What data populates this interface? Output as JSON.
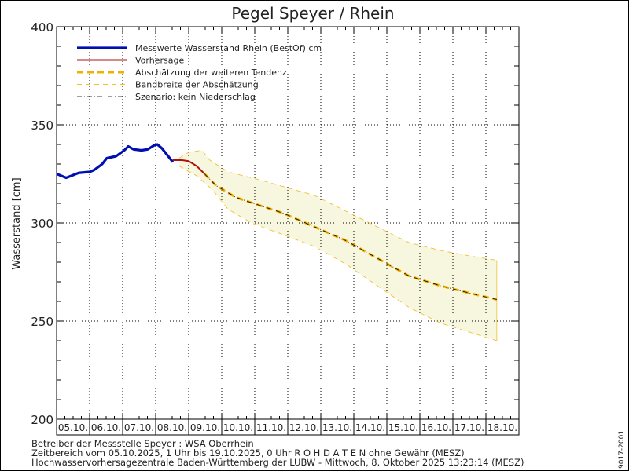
{
  "chart_data": {
    "type": "line",
    "title": "Pegel Speyer / Rhein",
    "ylabel": "Wasserstand [cm]",
    "xlabel": "",
    "ylim": [
      200,
      400
    ],
    "yticks": [
      200,
      250,
      300,
      350,
      400
    ],
    "x_unit": "days since 05.10.2025 00:00",
    "xlim": [
      0,
      14
    ],
    "x_categories": [
      "05.10.",
      "06.10.",
      "07.10.",
      "08.10.",
      "09.10.",
      "10.10.",
      "11.10.",
      "12.10.",
      "13.10.",
      "14.10.",
      "15.10.",
      "16.10.",
      "17.10.",
      "18.10."
    ],
    "grid": true,
    "legend_position": "top-left",
    "series": [
      {
        "name": "Messwerte Wasserstand Rhein (BestOf)  cm",
        "color": "#0010b0",
        "style": "solid-thick",
        "x": [
          0,
          0.29,
          0.67,
          1.0,
          1.14,
          1.38,
          1.52,
          1.8,
          2.05,
          2.17,
          2.33,
          2.57,
          2.76,
          2.95,
          3.05,
          3.19,
          3.38,
          3.52
        ],
        "y": [
          325,
          323,
          325.5,
          326,
          327,
          330,
          333,
          334,
          337,
          339,
          337.5,
          337,
          337.5,
          339.5,
          340,
          338,
          334,
          331
        ]
      },
      {
        "name": "Vorhersage",
        "color": "#b01010",
        "style": "solid",
        "x": [
          3.52,
          3.8,
          4.0,
          4.24,
          4.48
        ],
        "y": [
          332,
          332,
          331.5,
          329,
          325
        ]
      },
      {
        "name": "Abschätzung der weiteren Tendenz",
        "color": "#f0b000",
        "style": "dashed-thick",
        "x": [
          4.48,
          4.83,
          5.43,
          6.14,
          6.86,
          7.81,
          8.76,
          9.71,
          10.67,
          11.62,
          12.57,
          13.33
        ],
        "y": [
          325,
          319,
          313,
          309,
          305,
          298,
          291,
          282,
          273,
          268,
          264,
          261
        ]
      },
      {
        "name": "Bandbreite der Abschätzung (oben)",
        "legend": "Bandbreite der Abschätzung",
        "color": "#f0c030",
        "style": "dashed",
        "x": [
          3.71,
          4.0,
          4.4,
          4.64,
          5.19,
          6.14,
          7.81,
          8.76,
          9.71,
          10.67,
          11.62,
          12.57,
          13.33
        ],
        "y": [
          333,
          336,
          337,
          332,
          326,
          322,
          314,
          306,
          298,
          290,
          286,
          283,
          281
        ]
      },
      {
        "name": "Bandbreite der Abschätzung (unten)",
        "color": "#f0c030",
        "style": "dashed",
        "x": [
          3.71,
          4.24,
          4.71,
          5.19,
          5.9,
          6.86,
          7.81,
          8.76,
          9.71,
          10.67,
          11.62,
          12.57,
          13.33
        ],
        "y": [
          329,
          324,
          317,
          307,
          300,
          294,
          288,
          279,
          268,
          257,
          249,
          244,
          240
        ]
      },
      {
        "name": "Szenario: kein Niederschlag",
        "color": "#000000",
        "style": "dashdot",
        "x": [
          4.48,
          4.83,
          5.43,
          6.14,
          6.86,
          7.81,
          8.76,
          9.71,
          10.67,
          11.62,
          12.57,
          13.33
        ],
        "y": [
          325,
          319,
          313,
          309,
          305,
          298,
          291,
          282,
          273,
          268,
          264,
          261
        ]
      }
    ],
    "legend": [
      "Messwerte Wasserstand Rhein (BestOf)  cm",
      "Vorhersage",
      "Abschätzung der weiteren Tendenz",
      "Bandbreite der Abschätzung",
      "Szenario: kein Niederschlag"
    ],
    "band_fill": "#f7f7e0"
  },
  "footer": {
    "line1": "Betreiber der Messstelle Speyer : WSA Oberrhein",
    "line2": "Zeitbereich vom 05.10.2025, 1 Uhr bis 19.10.2025, 0 Uhr   R O H D A T E N ohne Gewähr (MESZ)",
    "line3": "Hochwasservorhersagezentrale Baden-Württemberg der LUBW - Mittwoch, 8. Oktober 2025 13:23:14 (MESZ)",
    "code": "9017-2001"
  }
}
